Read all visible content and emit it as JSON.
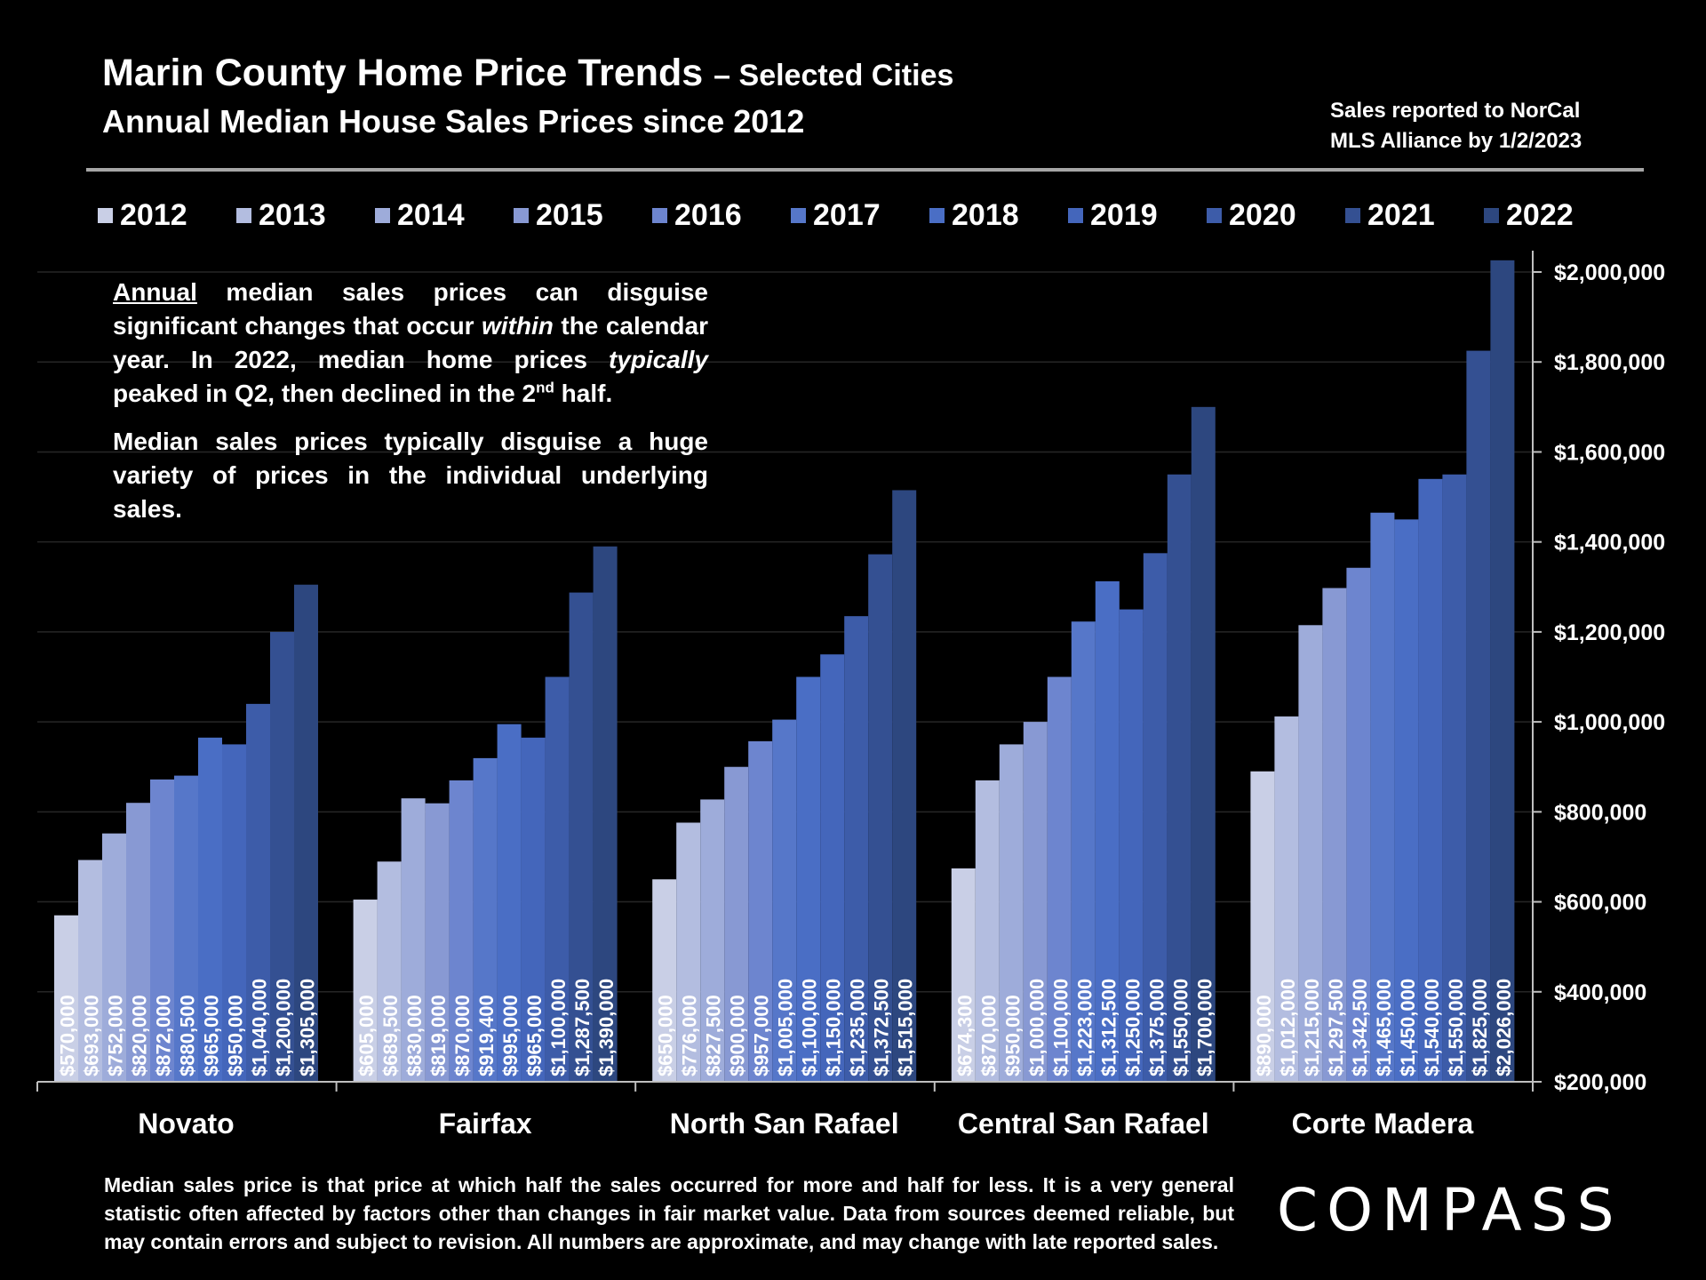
{
  "header": {
    "title_main": "Marin County Home Price Trends",
    "title_suffix": "– Selected Cities",
    "subtitle": "Annual Median House Sales Prices since 2012",
    "source_line1": "Sales reported to NorCal",
    "source_line2": "MLS Alliance by 1/2/2023"
  },
  "annotation": {
    "p1_underlined": "Annual",
    "p1_a": " median sales prices can disguise significant changes that occur ",
    "p1_italic1": "within",
    "p1_b": " the calendar year. In 2022, median home prices ",
    "p1_italic2": "typically",
    "p1_c": " peaked in Q2, then declined in the 2",
    "p1_sup": "nd",
    "p1_d": " half.",
    "p2": "Median sales prices typically disguise a huge variety of prices in the individual underlying sales."
  },
  "footnote": "Median sales price is that price at which half the sales occurred for more and half for less. It is a very general statistic often affected by factors other than changes in fair market value. Data from sources deemed reliable, but may contain errors and subject to revision. All numbers are approximate, and may change with late reported sales.",
  "logo": {
    "text": "COMPASS"
  },
  "chart_data": {
    "type": "bar",
    "categories": [
      "Novato",
      "Fairfax",
      "North San Rafael",
      "Central San Rafael",
      "Corte Madera"
    ],
    "ylim": [
      200000,
      2000000
    ],
    "yticks": [
      200000,
      400000,
      600000,
      800000,
      1000000,
      1200000,
      1400000,
      1600000,
      1800000,
      2000000
    ],
    "ytick_labels": [
      "$200,000",
      "$400,000",
      "$600,000",
      "$800,000",
      "$1,000,000",
      "$1,200,000",
      "$1,400,000",
      "$1,600,000",
      "$1,800,000",
      "$2,000,000"
    ],
    "y_axis_side": "right",
    "grid": true,
    "legend_position": "top",
    "series": [
      {
        "name": "2012",
        "color": "#c9cfe6",
        "values": [
          570000,
          605000,
          650000,
          674300,
          890000
        ],
        "labels": [
          "$570,000",
          "$605,000",
          "$650,000",
          "$674,300",
          "$890,000"
        ]
      },
      {
        "name": "2013",
        "color": "#b3bde0",
        "values": [
          693000,
          689500,
          776000,
          870000,
          1012000
        ],
        "labels": [
          "$693,000",
          "$689,500",
          "$776,000",
          "$870,000",
          "$1,012,000"
        ]
      },
      {
        "name": "2014",
        "color": "#9eacda",
        "values": [
          752000,
          830000,
          827500,
          950000,
          1215000
        ],
        "labels": [
          "$752,000",
          "$830,000",
          "$827,500",
          "$950,000",
          "$1,215,000"
        ]
      },
      {
        "name": "2015",
        "color": "#8899d3",
        "values": [
          820000,
          819000,
          900000,
          1000000,
          1297500
        ],
        "labels": [
          "$820,000",
          "$819,000",
          "$900,000",
          "$1,000,000",
          "$1,297,500"
        ]
      },
      {
        "name": "2016",
        "color": "#6d85cf",
        "values": [
          872000,
          870000,
          957000,
          1100000,
          1342500
        ],
        "labels": [
          "$872,000",
          "$870,000",
          "$957,000",
          "$1,100,000",
          "$1,342,500"
        ]
      },
      {
        "name": "2017",
        "color": "#5677c9",
        "values": [
          880500,
          919400,
          1005000,
          1223000,
          1465000
        ],
        "labels": [
          "$880,500",
          "$919,400",
          "$1,005,000",
          "$1,223,000",
          "$1,465,000"
        ]
      },
      {
        "name": "2018",
        "color": "#4a6ec5",
        "values": [
          965000,
          995000,
          1100000,
          1312500,
          1450000
        ],
        "labels": [
          "$965,000",
          "$995,000",
          "$1,100,000",
          "$1,312,500",
          "$1,450,000"
        ]
      },
      {
        "name": "2019",
        "color": "#4466bb",
        "values": [
          950000,
          965000,
          1150000,
          1250000,
          1540000
        ],
        "labels": [
          "$950,000",
          "$965,000",
          "$1,150,000",
          "$1,250,000",
          "$1,540,000"
        ]
      },
      {
        "name": "2020",
        "color": "#3d5ca9",
        "values": [
          1040000,
          1100000,
          1235000,
          1375000,
          1550000
        ],
        "labels": [
          "$1,040,000",
          "$1,100,000",
          "$1,235,000",
          "$1,375,000",
          "$1,550,000"
        ]
      },
      {
        "name": "2021",
        "color": "#345092",
        "values": [
          1200000,
          1287500,
          1372500,
          1550000,
          1825000
        ],
        "labels": [
          "$1,200,000",
          "$1,287,500",
          "$1,372,500",
          "$1,550,000",
          "$1,825,000"
        ]
      },
      {
        "name": "2022",
        "color": "#2d477f",
        "values": [
          1305000,
          1390000,
          1515000,
          1700000,
          2026000
        ],
        "labels": [
          "$1,305,000",
          "$1,390,000",
          "$1,515,000",
          "$1,700,000",
          "$2,026,000"
        ]
      }
    ]
  }
}
